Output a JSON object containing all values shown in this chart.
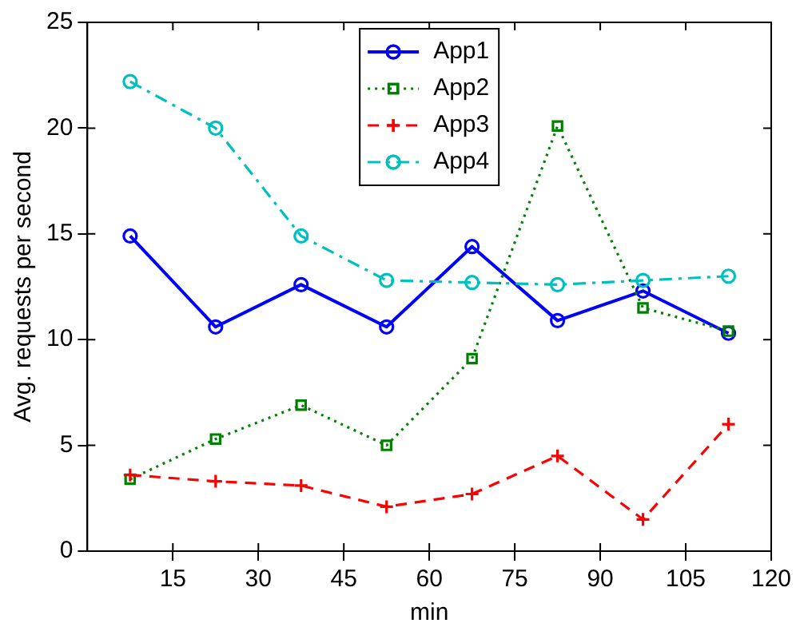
{
  "chart_data": {
    "type": "line",
    "xlabel": "min",
    "ylabel": "Avg. requests per second",
    "x": [
      7.5,
      22.5,
      37.5,
      52.5,
      67.5,
      82.5,
      97.5,
      112.5
    ],
    "xlim": [
      0,
      120
    ],
    "xticks": [
      15,
      30,
      45,
      60,
      75,
      90,
      105,
      120
    ],
    "ylim": [
      0,
      25
    ],
    "yticks": [
      0,
      5,
      10,
      15,
      20,
      25
    ],
    "grid": false,
    "legend": "top",
    "series": [
      {
        "name": "App1",
        "color": "#0000ff",
        "marker": "circle",
        "line_style": "solid",
        "values": [
          14.9,
          10.6,
          12.6,
          10.6,
          14.4,
          10.9,
          12.3,
          10.3
        ]
      },
      {
        "name": "App2",
        "color": "#008000",
        "marker": "square",
        "line_style": "dotted",
        "values": [
          3.4,
          5.3,
          6.9,
          5.0,
          9.1,
          20.1,
          11.5,
          10.4
        ]
      },
      {
        "name": "App3",
        "color": "#ff0000",
        "marker": "cross",
        "line_style": "dashed",
        "values": [
          3.6,
          3.3,
          3.1,
          2.1,
          2.7,
          4.5,
          1.5,
          6.0
        ]
      },
      {
        "name": "App4",
        "color": "#00bfbf",
        "marker": "circle",
        "line_style": "dashdot",
        "values": [
          22.2,
          20.0,
          14.9,
          12.8,
          12.7,
          12.6,
          12.8,
          13.0
        ]
      }
    ]
  }
}
